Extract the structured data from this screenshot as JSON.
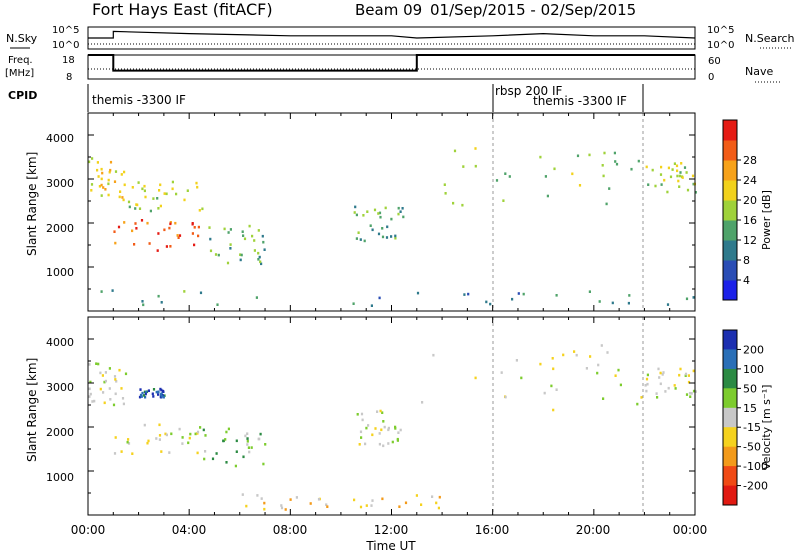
{
  "header": {
    "station": "Fort Hays East (fitACF)",
    "beam": "Beam 09",
    "date_range": "01/Sep/2015 - 02/Sep/2015"
  },
  "noise_panel": {
    "left_label": "N.Sky",
    "right_label": "N.Search",
    "left_ticks": [
      "10^5",
      "10^0"
    ],
    "right_ticks": [
      "10^5",
      "10^0"
    ]
  },
  "freq_panel": {
    "left_label_1": "Freq.",
    "left_label_2": "[MHz]",
    "right_label": "Nave",
    "left_ticks": [
      "18",
      "8"
    ],
    "right_ticks": [
      "60",
      "0"
    ]
  },
  "cpid_panel": {
    "label": "CPID",
    "entries": [
      {
        "text": "themis -3300 IF",
        "start_hour": 0
      },
      {
        "text": "rbsp 200 IF",
        "start_hour": 16
      },
      {
        "text": "themis -3300 IF",
        "start_hour": 22
      }
    ]
  },
  "power_panel": {
    "ylabel": "Slant Range [km]",
    "yticks": [
      "1000",
      "2000",
      "3000",
      "4000"
    ],
    "colorbar_label": "Power [dB]",
    "colorbar_ticks": [
      "4",
      "8",
      "12",
      "16",
      "20",
      "24",
      "28"
    ],
    "colorbar_colors": [
      "#1c21e8",
      "#2a4db5",
      "#2f7a8c",
      "#4fa36a",
      "#9fd23a",
      "#f2d21c",
      "#f7a21a",
      "#f25c17",
      "#e51b14"
    ]
  },
  "velocity_panel": {
    "ylabel": "Slant Range [km]",
    "yticks": [
      "1000",
      "2000",
      "3000",
      "4000"
    ],
    "colorbar_label": "Velocity [m s⁻¹]",
    "colorbar_ticks": [
      "200",
      "100",
      "50",
      "15",
      "-15",
      "-50",
      "-100",
      "-200"
    ],
    "colorbar_colors": [
      "#1c2fb0",
      "#2a6fb7",
      "#2b8a43",
      "#7dcc2e",
      "#c8c8c8",
      "#f5d21e",
      "#f39a1a",
      "#f04a15",
      "#e11a12"
    ]
  },
  "xaxis": {
    "label": "Time UT",
    "ticks": [
      "00:00",
      "04:00",
      "08:00",
      "12:00",
      "16:00",
      "20:00",
      "00:00"
    ]
  },
  "chart_data": [
    {
      "type": "line",
      "title": "N.Sky / N.Search",
      "x_range_hours": [
        0,
        24
      ],
      "series": [
        {
          "name": "N.Sky",
          "x": [
            0,
            1,
            1,
            4,
            8,
            12,
            13,
            16,
            18,
            20,
            22,
            24
          ],
          "y": [
            0.5,
            0.5,
            0.8,
            0.7,
            0.6,
            0.6,
            0.5,
            0.6,
            0.7,
            0.6,
            0.6,
            0.5
          ]
        },
        {
          "name": "N.Search",
          "x": [
            0,
            24
          ],
          "y": [
            0.3,
            0.3
          ]
        }
      ]
    },
    {
      "type": "line",
      "title": "Freq. / Nave",
      "x_range_hours": [
        0,
        24
      ],
      "series": [
        {
          "name": "Freq. [MHz]",
          "x": [
            0,
            1,
            1,
            13,
            13,
            24
          ],
          "y": [
            18,
            18,
            11.5,
            11.5,
            18,
            18
          ]
        },
        {
          "name": "Nave",
          "x": [
            0,
            24
          ],
          "y": [
            15,
            15
          ]
        }
      ]
    },
    {
      "type": "heatmap",
      "title": "Power [dB]",
      "xlabel": "Time UT",
      "ylabel": "Slant Range [km]",
      "ylim": [
        0,
        4500
      ],
      "x_range_hours": [
        0,
        24
      ],
      "zlim": [
        0,
        30
      ],
      "echo_regions": [
        {
          "t_start": 0.0,
          "t_end": 1.5,
          "r_low": 2500,
          "r_high": 3500,
          "power_db": 18
        },
        {
          "t_start": 1.0,
          "t_end": 4.5,
          "r_low": 1400,
          "r_high": 2100,
          "power_db": 26
        },
        {
          "t_start": 1.5,
          "t_end": 4.5,
          "r_low": 2300,
          "r_high": 3000,
          "power_db": 16
        },
        {
          "t_start": 4.5,
          "t_end": 7.0,
          "r_low": 1100,
          "r_high": 2000,
          "power_db": 12
        },
        {
          "t_start": 10.5,
          "t_end": 12.5,
          "r_low": 1600,
          "r_high": 2400,
          "power_db": 12
        },
        {
          "t_start": 13.0,
          "t_end": 22.0,
          "r_low": 2400,
          "r_high": 3900,
          "power_db": 14
        },
        {
          "t_start": 22.0,
          "t_end": 24.0,
          "r_low": 2700,
          "r_high": 3400,
          "power_db": 16
        },
        {
          "t_start": 0.0,
          "t_end": 24.0,
          "r_low": 150,
          "r_high": 500,
          "power_db": 10
        }
      ]
    },
    {
      "type": "heatmap",
      "title": "Velocity [m s-1]",
      "xlabel": "Time UT",
      "ylabel": "Slant Range [km]",
      "ylim": [
        0,
        4500
      ],
      "x_range_hours": [
        0,
        24
      ],
      "zlim": [
        -200,
        200
      ],
      "echo_regions": [
        {
          "t_start": 0.0,
          "t_end": 1.5,
          "r_low": 2500,
          "r_high": 3500,
          "velocity": -10
        },
        {
          "t_start": 1.0,
          "t_end": 4.5,
          "r_low": 1400,
          "r_high": 2100,
          "velocity": 0
        },
        {
          "t_start": 2.0,
          "t_end": 3.0,
          "r_low": 2700,
          "r_high": 2900,
          "velocity": 150
        },
        {
          "t_start": 4.5,
          "t_end": 7.0,
          "r_low": 1100,
          "r_high": 2000,
          "velocity": 50
        },
        {
          "t_start": 10.5,
          "t_end": 12.5,
          "r_low": 1600,
          "r_high": 2400,
          "velocity": 0
        },
        {
          "t_start": 13.0,
          "t_end": 22.0,
          "r_low": 2400,
          "r_high": 3900,
          "velocity": 0
        },
        {
          "t_start": 22.0,
          "t_end": 24.0,
          "r_low": 2700,
          "r_high": 3400,
          "velocity": 0
        },
        {
          "t_start": 6.0,
          "t_end": 14.0,
          "r_low": 150,
          "r_high": 500,
          "velocity": -40
        }
      ]
    }
  ]
}
